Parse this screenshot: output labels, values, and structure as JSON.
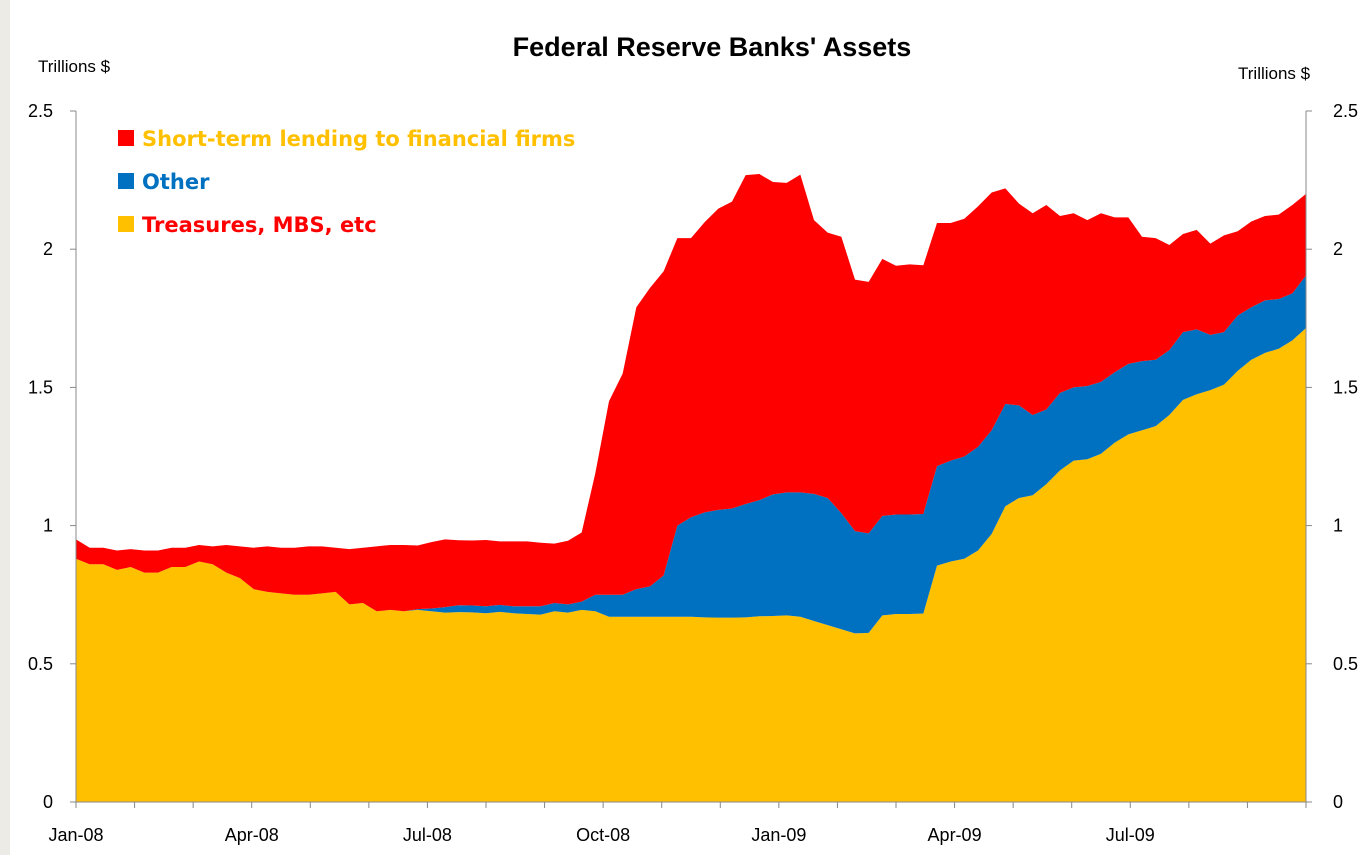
{
  "chart_data": {
    "type": "area",
    "title": "Federal Reserve Banks' Assets",
    "ylabel_left": "Trillions $",
    "ylabel_right": "Trillions $",
    "ylim": [
      0,
      2.5
    ],
    "y_ticks": [
      "0",
      "0.5",
      "1",
      "1.5",
      "2",
      "2.5"
    ],
    "x_tick_labels": [
      "Jan-08",
      "Apr-08",
      "Jul-08",
      "Oct-08",
      "Jan-09",
      "Apr-09",
      "Jul-09"
    ],
    "x_period": "weekly, Jan-08 to Sep-09",
    "grid": false,
    "stacked": true,
    "legend_placement": "top-left",
    "legend": [
      {
        "label": "Short-term lending to financial firms",
        "swatch_color": "#ff0000",
        "text_color": "#ffc000"
      },
      {
        "label": "Other",
        "swatch_color": "#0070c0",
        "text_color": "#0070c0"
      },
      {
        "label": "Treasures, MBS, etc",
        "swatch_color": "#ffc000",
        "text_color": "#ff0000"
      }
    ],
    "series": [
      {
        "key": "treasuries",
        "color": "#ffc000",
        "values": [
          0.88,
          0.86,
          0.86,
          0.84,
          0.85,
          0.83,
          0.83,
          0.85,
          0.85,
          0.87,
          0.86,
          0.83,
          0.81,
          0.77,
          0.76,
          0.755,
          0.75,
          0.75,
          0.755,
          0.76,
          0.715,
          0.72,
          0.69,
          0.695,
          0.69,
          0.695,
          0.69,
          0.685,
          0.687,
          0.686,
          0.683,
          0.688,
          0.683,
          0.68,
          0.678,
          0.69,
          0.685,
          0.695,
          0.69,
          0.67,
          0.67,
          0.67,
          0.67,
          0.67,
          0.67,
          0.67,
          0.668,
          0.667,
          0.667,
          0.668,
          0.672,
          0.673,
          0.675,
          0.67,
          0.655,
          0.64,
          0.625,
          0.61,
          0.612,
          0.675,
          0.68,
          0.68,
          0.682,
          0.855,
          0.87,
          0.88,
          0.91,
          0.97,
          1.07,
          1.1,
          1.11,
          1.15,
          1.2,
          1.235,
          1.24,
          1.26,
          1.3,
          1.33,
          1.345,
          1.36,
          1.4,
          1.455,
          1.475,
          1.49,
          1.51,
          1.56,
          1.6,
          1.625,
          1.64,
          1.67,
          1.715
        ]
      },
      {
        "key": "other",
        "color": "#0070c0",
        "values": [
          0,
          0,
          0,
          0,
          0,
          0,
          0,
          0,
          0,
          0,
          0,
          0,
          0,
          0,
          0,
          0,
          0,
          0,
          0,
          0,
          0,
          0,
          0,
          0,
          0,
          0.003,
          0.01,
          0.02,
          0.025,
          0.025,
          0.025,
          0.025,
          0.025,
          0.028,
          0.03,
          0.03,
          0.03,
          0.03,
          0.06,
          0.08,
          0.08,
          0.1,
          0.11,
          0.15,
          0.33,
          0.36,
          0.38,
          0.39,
          0.395,
          0.41,
          0.42,
          0.44,
          0.445,
          0.45,
          0.46,
          0.46,
          0.42,
          0.37,
          0.36,
          0.36,
          0.36,
          0.36,
          0.36,
          0.36,
          0.365,
          0.37,
          0.375,
          0.375,
          0.37,
          0.335,
          0.29,
          0.27,
          0.28,
          0.265,
          0.265,
          0.26,
          0.255,
          0.255,
          0.25,
          0.24,
          0.235,
          0.245,
          0.235,
          0.2,
          0.19,
          0.2,
          0.19,
          0.19,
          0.18,
          0.17,
          0.19
        ]
      },
      {
        "key": "lending",
        "color": "#ff0000",
        "values": [
          0.07,
          0.06,
          0.06,
          0.07,
          0.065,
          0.08,
          0.08,
          0.07,
          0.07,
          0.06,
          0.065,
          0.1,
          0.115,
          0.15,
          0.165,
          0.165,
          0.17,
          0.175,
          0.17,
          0.16,
          0.2,
          0.2,
          0.235,
          0.235,
          0.24,
          0.23,
          0.24,
          0.245,
          0.235,
          0.235,
          0.24,
          0.23,
          0.235,
          0.235,
          0.23,
          0.215,
          0.23,
          0.25,
          0.44,
          0.7,
          0.8,
          1.02,
          1.08,
          1.1,
          1.04,
          1.01,
          1.05,
          1.09,
          1.11,
          1.19,
          1.18,
          1.13,
          1.12,
          1.15,
          0.99,
          0.96,
          1.0,
          0.91,
          0.91,
          0.93,
          0.9,
          0.905,
          0.9,
          0.88,
          0.86,
          0.86,
          0.87,
          0.86,
          0.78,
          0.73,
          0.73,
          0.74,
          0.64,
          0.63,
          0.6,
          0.61,
          0.56,
          0.53,
          0.45,
          0.44,
          0.38,
          0.355,
          0.36,
          0.33,
          0.35,
          0.305,
          0.31,
          0.305,
          0.305,
          0.32,
          0.295
        ]
      }
    ]
  }
}
